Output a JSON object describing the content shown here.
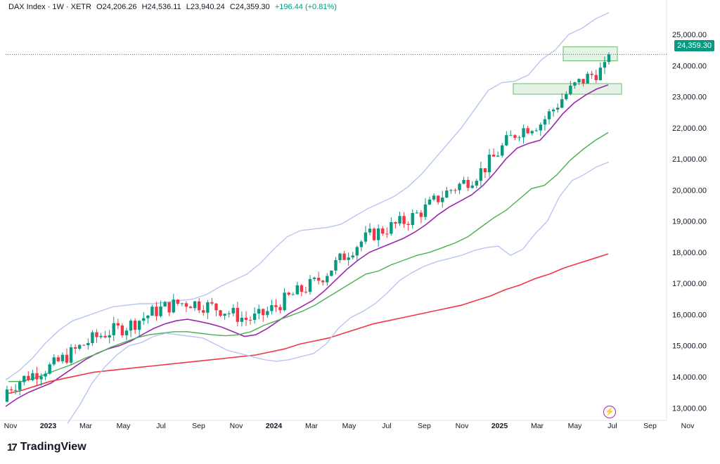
{
  "header": {
    "symbol": "DAX Index · 1W · XETR",
    "open": "O24,206.26",
    "high": "H24,536.11",
    "low": "L23,940.24",
    "close": "C24,359.30",
    "change": "+196.44 (+0.81%)"
  },
  "price_tag": "24,359.30",
  "logo": {
    "mark": "17",
    "text": "TradingView"
  },
  "flash_icon": "lightning-icon",
  "colors": {
    "up": "#089981",
    "down": "#f23645",
    "ma_short": "#9c27b0",
    "ma_mid": "#4caf50",
    "ma_long": "#f23645",
    "bands": "#b7c6f1"
  },
  "chart_data": {
    "type": "candlestick",
    "title": "DAX Index · 1W · XETR",
    "ylim": [
      12600,
      25700
    ],
    "y_ticks": [
      "13,000.00",
      "14,000.00",
      "15,000.00",
      "16,000.00",
      "17,000.00",
      "18,000.00",
      "19,000.00",
      "20,000.00",
      "21,000.00",
      "22,000.00",
      "23,000.00",
      "24,000.00",
      "25,000.00"
    ],
    "x_ticks": [
      {
        "label": "Nov",
        "year": false
      },
      {
        "label": "2023",
        "year": true
      },
      {
        "label": "Mar",
        "year": false
      },
      {
        "label": "May",
        "year": false
      },
      {
        "label": "Jul",
        "year": false
      },
      {
        "label": "Sep",
        "year": false
      },
      {
        "label": "Nov",
        "year": false
      },
      {
        "label": "2024",
        "year": true
      },
      {
        "label": "Mar",
        "year": false
      },
      {
        "label": "May",
        "year": false
      },
      {
        "label": "Jul",
        "year": false
      },
      {
        "label": "Sep",
        "year": false
      },
      {
        "label": "Nov",
        "year": false
      },
      {
        "label": "2025",
        "year": true
      },
      {
        "label": "Mar",
        "year": false
      },
      {
        "label": "May",
        "year": false
      },
      {
        "label": "Jul",
        "year": false
      },
      {
        "label": "Sep",
        "year": false
      },
      {
        "label": "Nov",
        "year": false
      }
    ],
    "last_price": 24359.3,
    "boxes": [
      {
        "y_low": 24150,
        "y_high": 24600
      },
      {
        "y_low": 23080,
        "y_high": 23420
      }
    ],
    "series": [
      {
        "name": "ma_short",
        "values": [
          13050,
          13300,
          13500,
          13650,
          13800,
          14050,
          14300,
          14550,
          14750,
          14900,
          15000,
          15150,
          15350,
          15550,
          15700,
          15800,
          15850,
          15780,
          15700,
          15600,
          15450,
          15300,
          15350,
          15550,
          15800,
          16050,
          16250,
          16450,
          16750,
          17100,
          17450,
          17750,
          18000,
          18150,
          18300,
          18450,
          18650,
          18900,
          19200,
          19450,
          19650,
          19850,
          20150,
          20550,
          21000,
          21350,
          21500,
          21600,
          22000,
          22450,
          22800,
          23050,
          23250,
          23380
        ]
      },
      {
        "name": "ma_mid",
        "values": [
          13850,
          13850,
          13950,
          14100,
          14250,
          14400,
          14600,
          14750,
          14950,
          15100,
          15250,
          15350,
          15400,
          15450,
          15450,
          15400,
          15350,
          15320,
          15350,
          15450,
          15650,
          15800,
          15950,
          16100,
          16300,
          16550,
          16800,
          17050,
          17300,
          17400,
          17600,
          17750,
          17900,
          18000,
          18150,
          18300,
          18500,
          18800,
          19100,
          19350,
          19700,
          20050,
          20150,
          20500,
          20950,
          21300,
          21600,
          21850
        ]
      },
      {
        "name": "ma_long",
        "values": [
          13450,
          13550,
          13700,
          13850,
          13950,
          14050,
          14150,
          14200,
          14250,
          14300,
          14350,
          14400,
          14450,
          14500,
          14550,
          14600,
          14650,
          14700,
          14800,
          14900,
          15050,
          15150,
          15250,
          15400,
          15550,
          15700,
          15800,
          15900,
          16000,
          16100,
          16200,
          16300,
          16450,
          16600,
          16800,
          16950,
          17150,
          17300,
          17500,
          17650,
          17800,
          17950
        ]
      },
      {
        "name": "bands_upper",
        "values": [
          13900,
          14200,
          14600,
          15100,
          15500,
          15800,
          15950,
          16100,
          16250,
          16300,
          16350,
          16350,
          16400,
          16450,
          16500,
          16650,
          16900,
          17100,
          17300,
          17650,
          18100,
          18500,
          18700,
          18750,
          18800,
          18900,
          19150,
          19400,
          19600,
          19800,
          20100,
          20500,
          21000,
          21500,
          22000,
          22600,
          23200,
          23450,
          23500,
          23700,
          24200,
          24500,
          25000,
          25200,
          25500,
          25700
        ]
      },
      {
        "name": "bands_lower",
        "values": [
          12500,
          13100,
          13800,
          14300,
          14700,
          15000,
          15100,
          15300,
          15400,
          15350,
          15300,
          15250,
          15050,
          14850,
          14750,
          14650,
          14550,
          14500,
          14550,
          14650,
          14750,
          15050,
          15550,
          15900,
          16100,
          16350,
          16700,
          17100,
          17350,
          17550,
          17700,
          17800,
          17900,
          18050,
          18150,
          18200,
          17900,
          18100,
          18600,
          19000,
          19800,
          20300,
          20500,
          20750,
          20900
        ]
      }
    ]
  }
}
